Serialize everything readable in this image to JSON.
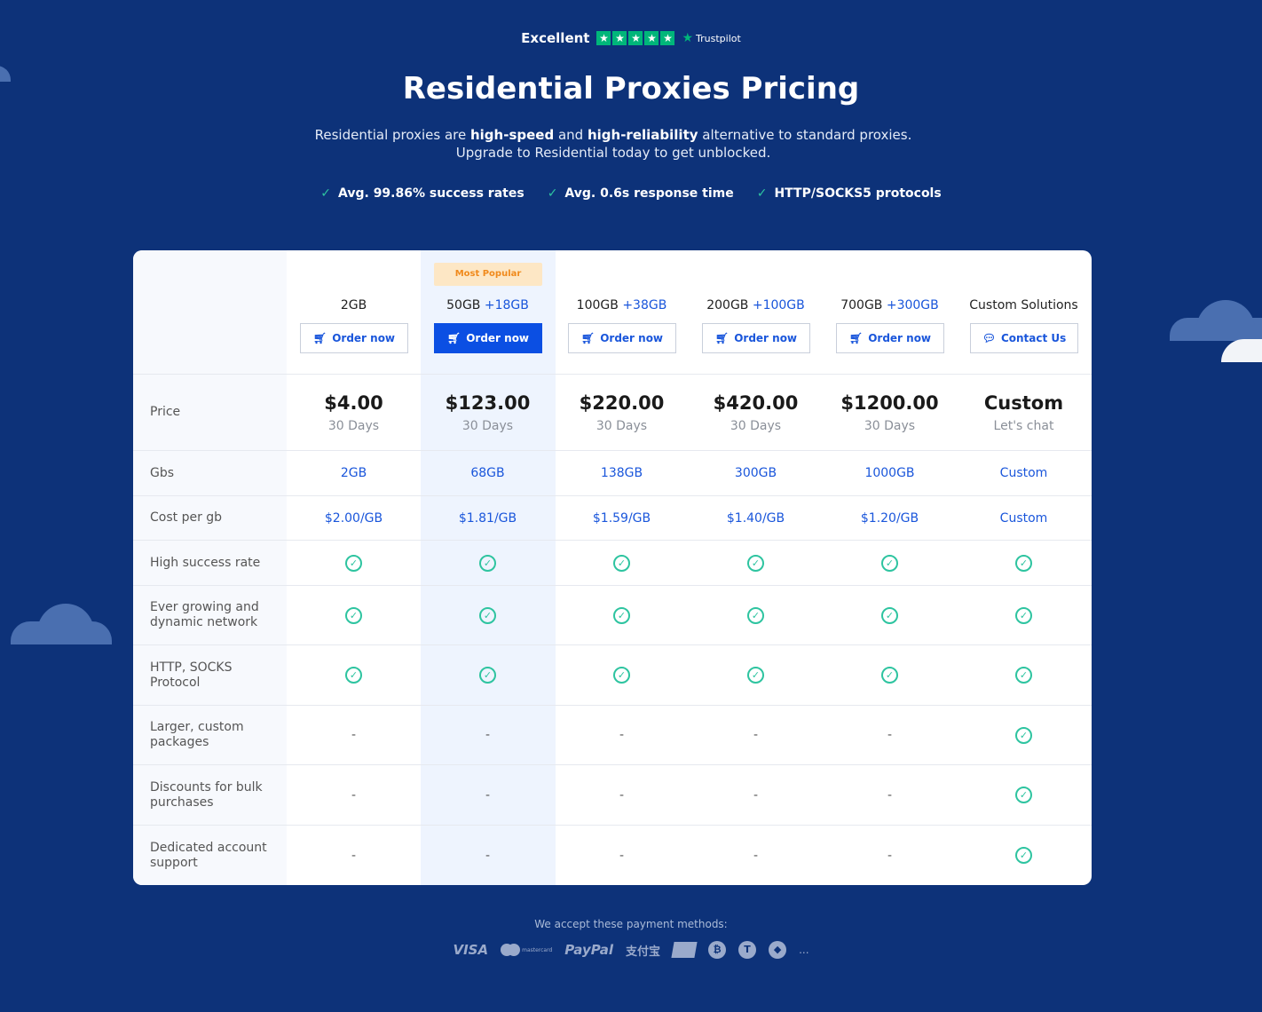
{
  "trustpilot": {
    "label": "Excellent",
    "brand": "Trustpilot"
  },
  "hero": {
    "title": "Residential Proxies Pricing",
    "subtitle_parts": [
      "Residential proxies are ",
      "high-speed",
      " and ",
      "high-reliability",
      " alternative to standard proxies. Upgrade to Residential today to get unblocked."
    ],
    "features": [
      "Avg. 99.86% success rates",
      "Avg. 0.6s response time",
      "HTTP/SOCKS5 protocols"
    ]
  },
  "plans": [
    {
      "name": "2GB",
      "bonus": "",
      "button": "Order now",
      "price": "$4.00",
      "period": "30 Days",
      "gbs": "2GB",
      "cost": "$2.00/GB"
    },
    {
      "name": "50GB",
      "bonus": "+18GB",
      "badge": "Most Popular",
      "button": "Order now",
      "price": "$123.00",
      "period": "30 Days",
      "gbs": "68GB",
      "cost": "$1.81/GB"
    },
    {
      "name": "100GB",
      "bonus": "+38GB",
      "button": "Order now",
      "price": "$220.00",
      "period": "30 Days",
      "gbs": "138GB",
      "cost": "$1.59/GB"
    },
    {
      "name": "200GB",
      "bonus": "+100GB",
      "button": "Order now",
      "price": "$420.00",
      "period": "30 Days",
      "gbs": "300GB",
      "cost": "$1.40/GB"
    },
    {
      "name": "700GB",
      "bonus": "+300GB",
      "button": "Order now",
      "price": "$1200.00",
      "period": "30 Days",
      "gbs": "1000GB",
      "cost": "$1.20/GB"
    },
    {
      "name": "Custom Solutions",
      "bonus": "",
      "button": "Contact Us",
      "price": "Custom",
      "period": "Let's chat",
      "gbs": "Custom",
      "cost": "Custom"
    }
  ],
  "rows": {
    "price": "Price",
    "gbs": "Gbs",
    "cost": "Cost per gb",
    "features": [
      {
        "label": "High success rate",
        "values": [
          true,
          true,
          true,
          true,
          true,
          true
        ]
      },
      {
        "label": "Ever growing and dynamic network",
        "values": [
          true,
          true,
          true,
          true,
          true,
          true
        ]
      },
      {
        "label": "HTTP, SOCKS Protocol",
        "values": [
          true,
          true,
          true,
          true,
          true,
          true
        ]
      },
      {
        "label": "Larger, custom packages",
        "values": [
          false,
          false,
          false,
          false,
          false,
          true
        ]
      },
      {
        "label": "Discounts for bulk purchases",
        "values": [
          false,
          false,
          false,
          false,
          false,
          true
        ]
      },
      {
        "label": "Dedicated account support",
        "values": [
          false,
          false,
          false,
          false,
          false,
          true
        ]
      }
    ]
  },
  "dash": "-",
  "payments": {
    "label": "We accept these payment methods:",
    "visa": "VISA",
    "mastercard": "mastercard",
    "paypal": "PayPal",
    "alipay": "支付宝",
    "more": "..."
  },
  "icons": {
    "check": "check-icon",
    "cart": "cart-icon",
    "chat": "chat-icon",
    "star": "star-icon"
  }
}
